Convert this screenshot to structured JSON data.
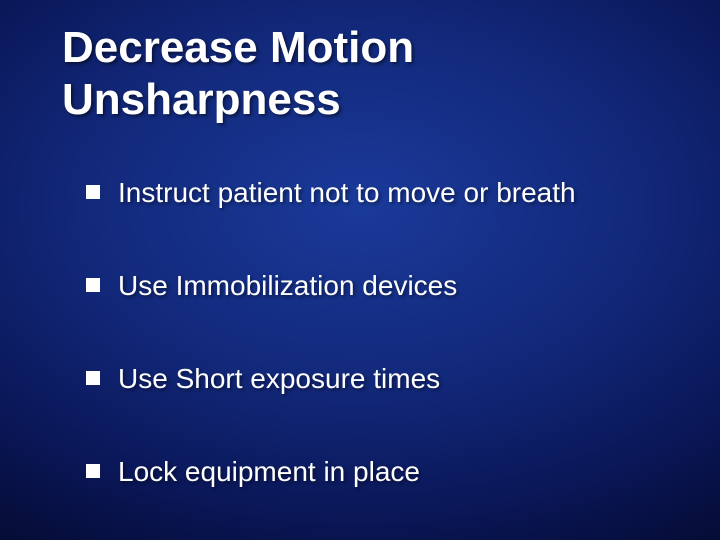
{
  "slide": {
    "title": "Decrease Motion Unsharpness",
    "title_fontsize": 44,
    "title_fontweight": 700,
    "text_color": "#ffffff",
    "bullet_marker_color": "#ffffff",
    "bullet_marker_size": 14,
    "bullet_fontsize": 28,
    "bullet_gap": 58,
    "background_gradient": {
      "type": "radial",
      "center_color": "#1a3a9a",
      "mid_color": "#0a1758",
      "edge_color": "#010418"
    },
    "bullets": [
      "Instruct patient not to move or breath",
      "Use Immobilization devices",
      "Use Short exposure times",
      "Lock equipment in place"
    ]
  }
}
